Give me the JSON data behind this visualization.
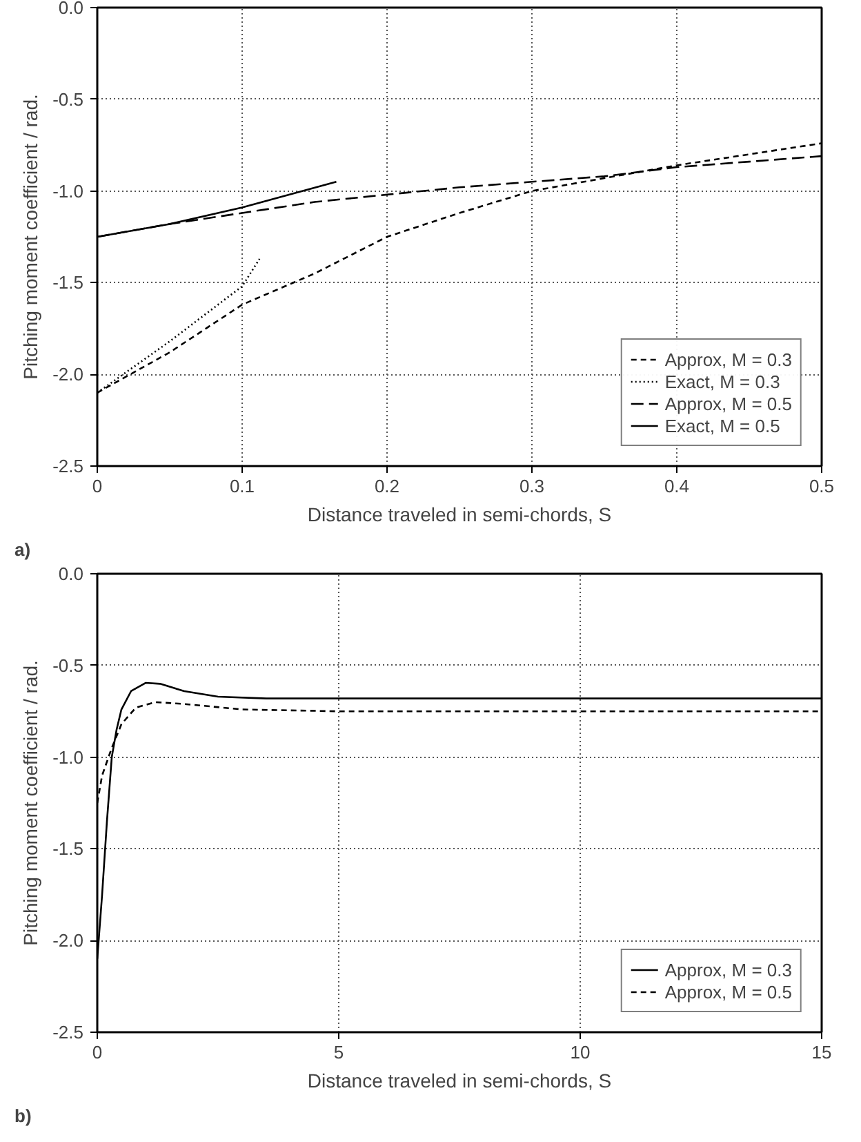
{
  "chart_data": [
    {
      "type": "line",
      "xlabel": "Distance traveled in semi-chords, S",
      "ylabel": "Pitching moment coefficient / rad.",
      "annotations": [
        "a)"
      ],
      "xlim": [
        0,
        0.5
      ],
      "ylim": [
        -2.5,
        0
      ],
      "xticks": [
        0,
        0.1,
        0.2,
        0.3,
        0.4,
        0.5
      ],
      "yticks": [
        {
          "value": 0,
          "label": "0.0"
        },
        -0.5,
        {
          "value": -1,
          "label": "-1.0"
        },
        -1.5,
        {
          "value": -2,
          "label": "-2.0"
        },
        -2.5
      ],
      "grid": true,
      "legend": "bottom right",
      "series": [
        {
          "name": "Approx, M = 0.3",
          "color": "#000000",
          "line_style": "dashed",
          "x": [
            0,
            0.05,
            0.1,
            0.15,
            0.2,
            0.25,
            0.3,
            0.35,
            0.4,
            0.45,
            0.5
          ],
          "values": [
            -2.1,
            -1.88,
            -1.62,
            -1.45,
            -1.25,
            -1.12,
            -1.0,
            -0.93,
            -0.86,
            -0.8,
            -0.74
          ]
        },
        {
          "name": "Exact, M = 0.3",
          "color": "#000000",
          "line_style": "dotted",
          "x": [
            0,
            0.05,
            0.1,
            0.112
          ],
          "values": [
            -2.1,
            -1.82,
            -1.52,
            -1.37
          ]
        },
        {
          "name": "Approx, M = 0.5",
          "color": "#000000",
          "line_style": "longdash",
          "x": [
            0,
            0.05,
            0.1,
            0.15,
            0.2,
            0.25,
            0.3,
            0.35,
            0.4,
            0.45,
            0.5
          ],
          "values": [
            -1.25,
            -1.18,
            -1.12,
            -1.06,
            -1.02,
            -0.98,
            -0.95,
            -0.92,
            -0.87,
            -0.84,
            -0.81
          ]
        },
        {
          "name": "Exact, M = 0.5",
          "color": "#000000",
          "line_style": "solid",
          "x": [
            0,
            0.05,
            0.1,
            0.165
          ],
          "values": [
            -1.25,
            -1.18,
            -1.09,
            -0.95
          ]
        }
      ]
    },
    {
      "type": "line",
      "xlabel": "Distance traveled in semi-chords, S",
      "ylabel": "Pitching moment coefficient / rad.",
      "annotations": [
        "b)"
      ],
      "xlim": [
        0,
        15
      ],
      "ylim": [
        -2.5,
        0
      ],
      "xticks": [
        0,
        5,
        10,
        15
      ],
      "yticks": [
        {
          "value": 0,
          "label": "0.0"
        },
        -0.5,
        {
          "value": -1,
          "label": "-1.0"
        },
        -1.5,
        {
          "value": -2,
          "label": "-2.0"
        },
        -2.5
      ],
      "grid": true,
      "legend": "bottom right",
      "series": [
        {
          "name": "Approx, M = 0.3",
          "color": "#000000",
          "line_style": "solid",
          "x": [
            0,
            0.1,
            0.2,
            0.3,
            0.4,
            0.5,
            0.7,
            1.0,
            1.3,
            1.8,
            2.5,
            3.5,
            5,
            10,
            15
          ],
          "values": [
            -2.1,
            -1.75,
            -1.35,
            -1.0,
            -0.85,
            -0.74,
            -0.64,
            -0.595,
            -0.6,
            -0.64,
            -0.67,
            -0.68,
            -0.68,
            -0.68,
            -0.68
          ]
        },
        {
          "name": "Approx, M = 0.5",
          "color": "#000000",
          "line_style": "dashed",
          "x": [
            0,
            0.1,
            0.3,
            0.5,
            0.8,
            1.2,
            1.8,
            3,
            5,
            10,
            15
          ],
          "values": [
            -1.25,
            -1.1,
            -0.95,
            -0.82,
            -0.73,
            -0.7,
            -0.71,
            -0.74,
            -0.75,
            -0.75,
            -0.75
          ]
        }
      ]
    }
  ]
}
